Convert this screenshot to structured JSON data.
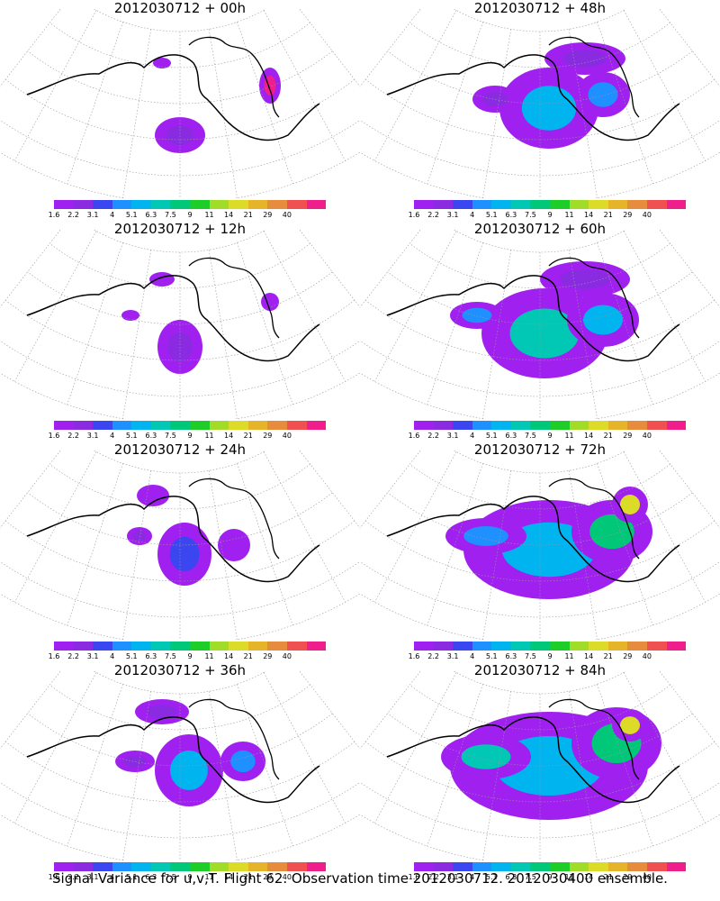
{
  "caption": "Signal Variance for u,v,T. Flight 62. Observation time 2012030712. 2012030400 ensemble.",
  "colorbar": {
    "labels": [
      "1.6",
      "2.2",
      "3.1",
      "4",
      "5.1",
      "6.3",
      "7.5",
      "9",
      "11",
      "14",
      "21",
      "29",
      "40"
    ],
    "colors": [
      "#a020f0",
      "#8a2be2",
      "#3c46f0",
      "#1e90ff",
      "#00b4f0",
      "#00c8b4",
      "#00c878",
      "#1ecd28",
      "#a0dc28",
      "#dcdc28",
      "#e6b428",
      "#e68c3c",
      "#f05050",
      "#f01e8c"
    ]
  },
  "panels": [
    {
      "title": "2012030712 + 00h",
      "intensity": 1
    },
    {
      "title": "2012030712 + 48h",
      "intensity": 5
    },
    {
      "title": "2012030712 + 12h",
      "intensity": 2
    },
    {
      "title": "2012030712 + 60h",
      "intensity": 6
    },
    {
      "title": "2012030712 + 24h",
      "intensity": 3
    },
    {
      "title": "2012030712 + 72h",
      "intensity": 7
    },
    {
      "title": "2012030712 + 36h",
      "intensity": 4
    },
    {
      "title": "2012030712 + 84h",
      "intensity": 8
    }
  ]
}
